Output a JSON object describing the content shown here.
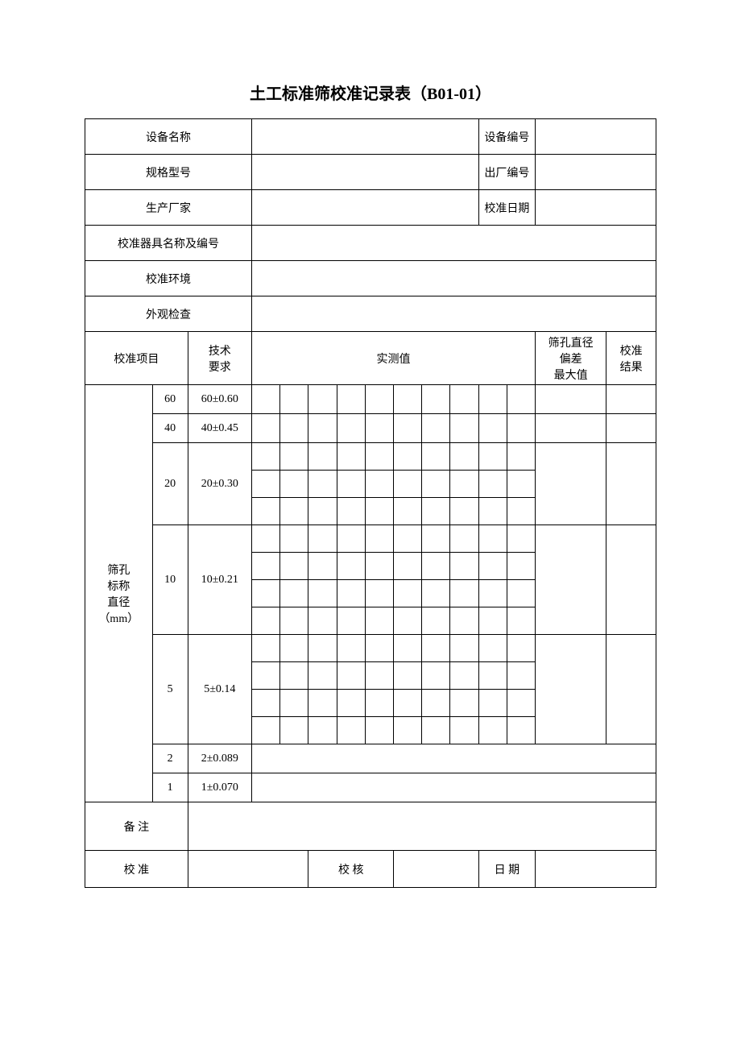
{
  "title": "土工标准筛校准记录表（B01-01）",
  "header": {
    "equip_name_label": "设备名称",
    "equip_no_label": "设备编号",
    "model_label": "规格型号",
    "factory_no_label": "出厂编号",
    "manufacturer_label": "生产厂家",
    "cal_date_label": "校准日期",
    "cal_tool_label": "校准器具名称及编号",
    "cal_env_label": "校准环境",
    "visual_label": "外观检查",
    "equip_name": "",
    "equip_no": "",
    "model": "",
    "factory_no": "",
    "manufacturer": "",
    "cal_date": "",
    "cal_tool": "",
    "cal_env": "",
    "visual": ""
  },
  "subheader": {
    "item_label": "校准项目",
    "tech_req_label": "技术\n要求",
    "measured_label": "实测值",
    "dev_max_label": "筛孔直径\n偏差\n最大值",
    "result_label": "校准\n结果"
  },
  "group_label": "筛孔\n标称\n直径\n（mm）",
  "rows": [
    {
      "size": "60",
      "req": "60±0.60",
      "subrows": 1,
      "merged": false
    },
    {
      "size": "40",
      "req": "40±0.45",
      "subrows": 1,
      "merged": false
    },
    {
      "size": "20",
      "req": "20±0.30",
      "subrows": 3,
      "merged": false
    },
    {
      "size": "10",
      "req": "10±0.21",
      "subrows": 4,
      "merged": false
    },
    {
      "size": "5",
      "req": "5±0.14",
      "subrows": 4,
      "merged": false
    },
    {
      "size": "2",
      "req": "2±0.089",
      "subrows": 1,
      "merged": true
    },
    {
      "size": "1",
      "req": "1±0.070",
      "subrows": 1,
      "merged": true
    }
  ],
  "footer": {
    "remark_label": "备  注",
    "remark": "",
    "calibrator_label": "校  准",
    "reviewer_label": "校  核",
    "date_label": "日  期",
    "calibrator": "",
    "reviewer": "",
    "date": ""
  },
  "style": {
    "cols_measure": 10
  }
}
